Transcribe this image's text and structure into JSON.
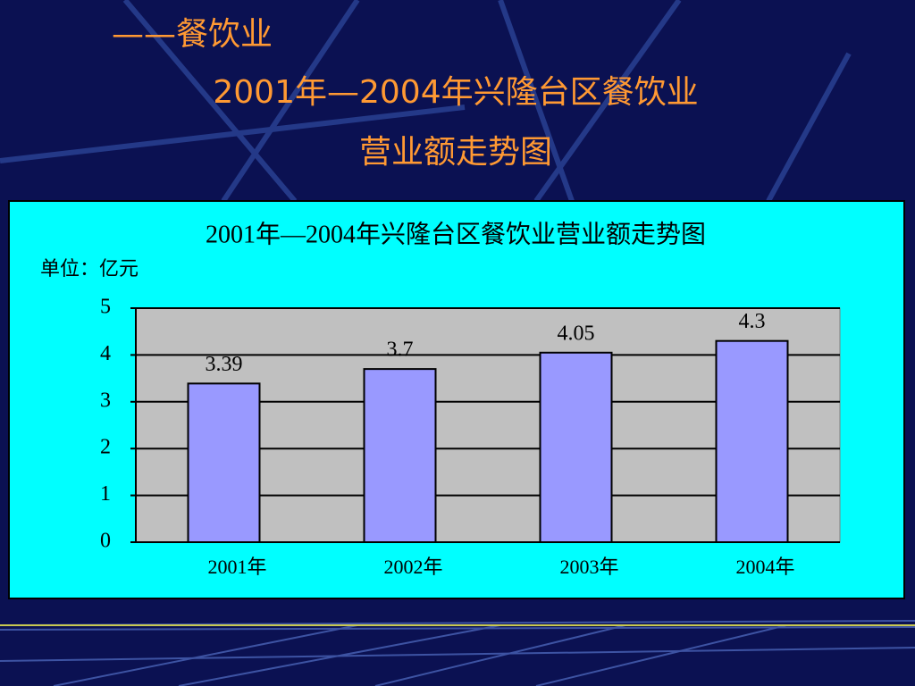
{
  "header": {
    "line1": "——餐饮业",
    "line2": "2001年—2004年兴隆台区餐饮业",
    "line3": "营业额走势图"
  },
  "chart_data": {
    "type": "bar",
    "title": "2001年—2004年兴隆台区餐饮业营业额走势图",
    "unit": "单位：亿元",
    "categories": [
      "2001年",
      "2002年",
      "2003年",
      "2004年"
    ],
    "values": [
      3.39,
      3.7,
      4.05,
      4.3
    ],
    "color": "#9999ff",
    "ylim": [
      0,
      5
    ],
    "yticks": [
      0,
      1,
      2,
      3,
      4,
      5
    ],
    "grid": true
  }
}
